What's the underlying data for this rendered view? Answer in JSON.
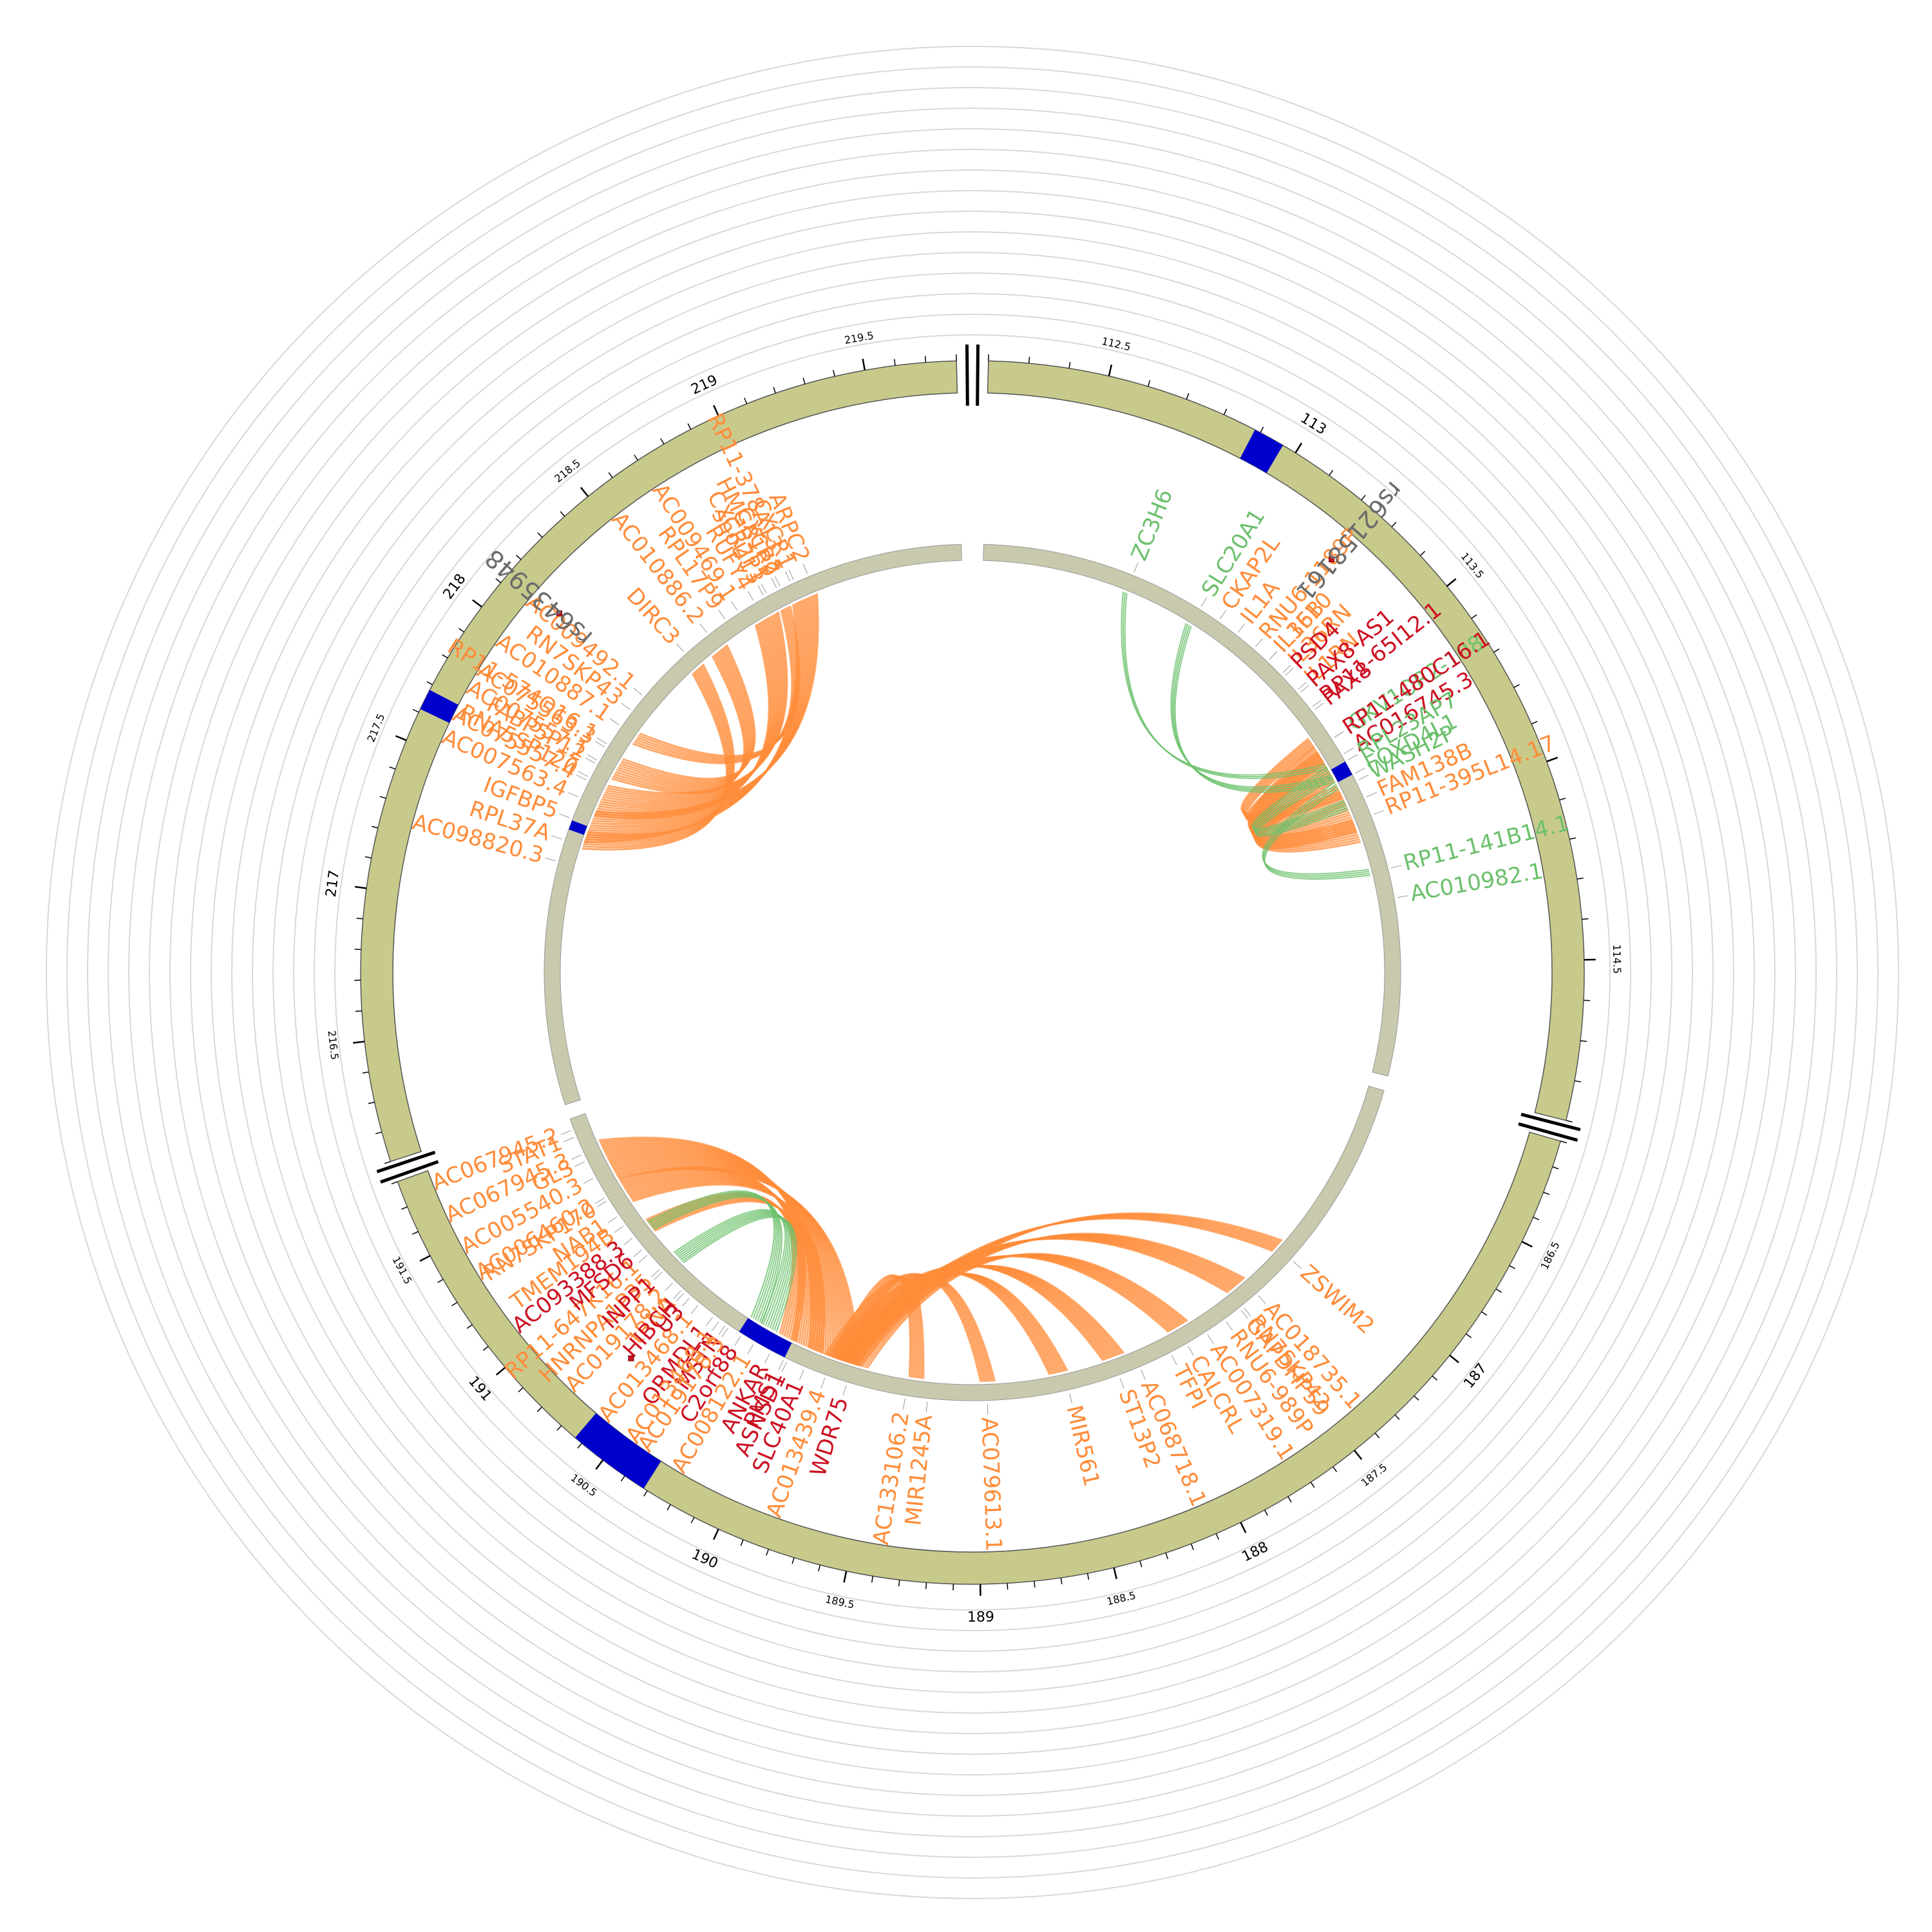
{
  "colors": {
    "ideogram": "#c8ca8c",
    "inner_track": "#c8c9ad",
    "highlight": "#0000cc",
    "orange": "#ff8c3a",
    "green": "#6cc06c",
    "red": "#cc1122",
    "grid": "#d8d8d8",
    "snp_dot": "#cc1122"
  },
  "segments": [
    {
      "id": "chr2a",
      "start": 112.2,
      "end": 114.9,
      "ang0": 1.5,
      "ang1": 104
    },
    {
      "id": "chr2b",
      "start": 186.1,
      "end": 191.8,
      "ang0": 106,
      "ang1": 250
    },
    {
      "id": "chr2c",
      "start": 216.1,
      "end": 219.8,
      "ang0": 252,
      "ang1": 358.5
    }
  ],
  "major_ticks": [
    {
      "label": "113",
      "seg": "chr2a",
      "pos": 113
    },
    {
      "label": "187",
      "seg": "chr2b",
      "pos": 187
    },
    {
      "label": "188",
      "seg": "chr2b",
      "pos": 188
    },
    {
      "label": "189",
      "seg": "chr2b",
      "pos": 189
    },
    {
      "label": "190",
      "seg": "chr2b",
      "pos": 190
    },
    {
      "label": "191",
      "seg": "chr2b",
      "pos": 191
    },
    {
      "label": "217",
      "seg": "chr2c",
      "pos": 217
    },
    {
      "label": "218",
      "seg": "chr2c",
      "pos": 218
    },
    {
      "label": "219",
      "seg": "chr2c",
      "pos": 219
    }
  ],
  "minor_ticks": [
    {
      "label": "112.5",
      "seg": "chr2a",
      "pos": 112.5
    },
    {
      "label": "113.5",
      "seg": "chr2a",
      "pos": 113.5
    },
    {
      "label": "114.5",
      "seg": "chr2a",
      "pos": 114.5
    },
    {
      "label": "186.5",
      "seg": "chr2b",
      "pos": 186.5
    },
    {
      "label": "187.5",
      "seg": "chr2b",
      "pos": 187.5
    },
    {
      "label": "188.5",
      "seg": "chr2b",
      "pos": 188.5
    },
    {
      "label": "189.5",
      "seg": "chr2b",
      "pos": 189.5
    },
    {
      "label": "190.5",
      "seg": "chr2b",
      "pos": 190.5
    },
    {
      "label": "191.5",
      "seg": "chr2b",
      "pos": 191.5
    },
    {
      "label": "216.5",
      "seg": "chr2c",
      "pos": 216.5
    },
    {
      "label": "217.5",
      "seg": "chr2c",
      "pos": 217.5
    },
    {
      "label": "218.5",
      "seg": "chr2c",
      "pos": 218.5
    },
    {
      "label": "219.5",
      "seg": "chr2c",
      "pos": 219.5
    }
  ],
  "outer_highlights": [
    {
      "a0": 27.5,
      "a1": 30.5
    },
    {
      "a0": 212.5,
      "a1": 220.5
    },
    {
      "a0": 295.5,
      "a1": 297.5
    }
  ],
  "inner_highlights": [
    {
      "a0": 60.5,
      "a1": 62.5
    },
    {
      "a0": 206,
      "a1": 213
    },
    {
      "a0": 289.5,
      "a1": 290.8
    }
  ],
  "snps": [
    {
      "label": "rs62158161",
      "ang": 41,
      "r": 850
    },
    {
      "label": "rs6435948",
      "ang": 311,
      "r": 850
    },
    {
      "label": "",
      "ang": 221.5,
      "r": 800
    }
  ],
  "genes_right": [
    {
      "label": "ZC3H6",
      "ang": 22,
      "color": "green"
    },
    {
      "label": "SLC20A1",
      "ang": 32,
      "color": "green"
    },
    {
      "label": "CKAP2L",
      "ang": 35,
      "color": "orange"
    },
    {
      "label": "IL1A",
      "ang": 38,
      "color": "orange"
    },
    {
      "label": "IL36B",
      "ang": 43.5,
      "color": "orange"
    },
    {
      "label": "RNU6-1189P",
      "ang": 41,
      "color": "orange"
    },
    {
      "label": "IL36RN",
      "ang": 46,
      "color": "orange"
    },
    {
      "label": "IL1F10",
      "ang": 43.5,
      "color": "orange"
    },
    {
      "label": "IL1RN",
      "ang": 49,
      "color": "orange"
    },
    {
      "label": "PSD4",
      "ang": 46.5,
      "color": "red"
    },
    {
      "label": "RP11-65I12.1",
      "ang": 52,
      "color": "red"
    },
    {
      "label": "PAX8-AS1",
      "ang": 49.5,
      "color": "red"
    },
    {
      "label": "PAX8",
      "ang": 52.5,
      "color": "red"
    },
    {
      "label": "IGKV1OR2-108",
      "ang": 57,
      "color": "green"
    },
    {
      "label": "AC016745.3",
      "ang": 59.5,
      "color": "red"
    },
    {
      "label": "RP11-480C16.1",
      "ang": 57,
      "color": "red"
    },
    {
      "label": "FOXD4L1",
      "ang": 62.5,
      "color": "green"
    },
    {
      "label": "RPL23AP7",
      "ang": 60.5,
      "color": "green"
    },
    {
      "label": "WASH2P",
      "ang": 63.5,
      "color": "green"
    },
    {
      "label": "FAM138B",
      "ang": 66,
      "color": "orange"
    },
    {
      "label": "RP11-395L14.17",
      "ang": 68.5,
      "color": "orange"
    },
    {
      "label": "RP11-141B14.1",
      "ang": 76,
      "color": "green"
    },
    {
      "label": "AC010982.1",
      "ang": 80,
      "color": "green"
    }
  ],
  "genes_bottom": [
    {
      "label": "ZSWIM2",
      "ang": 132,
      "color": "orange"
    },
    {
      "label": "AC018735.1",
      "ang": 138.5,
      "color": "orange"
    },
    {
      "label": "RNU6-989P",
      "ang": 144,
      "color": "orange"
    },
    {
      "label": "RN7SKP42",
      "ang": 141,
      "color": "orange"
    },
    {
      "label": "AC007319.1",
      "ang": 147,
      "color": "orange"
    },
    {
      "label": "CALCRL",
      "ang": 150,
      "color": "orange"
    },
    {
      "label": "GAPDHP59",
      "ang": 141.5,
      "color": "orange"
    },
    {
      "label": "TFPI",
      "ang": 152.5,
      "color": "orange"
    },
    {
      "label": "AC068718.1",
      "ang": 157,
      "color": "orange"
    },
    {
      "label": "ST13P2",
      "ang": 160,
      "color": "orange"
    },
    {
      "label": "MIR561",
      "ang": 167,
      "color": "orange"
    },
    {
      "label": "AC079613.1",
      "ang": 178,
      "color": "orange"
    },
    {
      "label": "MIR1245A",
      "ang": 186,
      "color": "orange"
    },
    {
      "label": "AC133106.2",
      "ang": 189,
      "color": "orange"
    },
    {
      "label": "WDR75",
      "ang": 197,
      "color": "red"
    },
    {
      "label": "AC013439.4",
      "ang": 200,
      "color": "orange"
    },
    {
      "label": "SLC40A1",
      "ang": 203,
      "color": "red"
    },
    {
      "label": "ASNSD1",
      "ang": 205.5,
      "color": "red"
    },
    {
      "label": "ANKAR",
      "ang": 208,
      "color": "red"
    },
    {
      "label": "PMS1",
      "ang": 206,
      "color": "red"
    },
    {
      "label": "AC008122.1",
      "ang": 210.5,
      "color": "orange"
    },
    {
      "label": "C2orf88",
      "ang": 212.5,
      "color": "red"
    },
    {
      "label": "MSTN",
      "ang": 215,
      "color": "red"
    },
    {
      "label": "AC019178.3",
      "ang": 214.5,
      "color": "orange"
    },
    {
      "label": "ORMDL1",
      "ang": 217,
      "color": "red"
    },
    {
      "label": "AC013468.1",
      "ang": 219.5,
      "color": "orange"
    },
    {
      "label": "U3",
      "ang": 221,
      "color": "red"
    },
    {
      "label": "tRNA",
      "ang": 222.5,
      "color": "orange"
    },
    {
      "label": "AC019178.2",
      "ang": 224,
      "color": "orange"
    },
    {
      "label": "HNRNPA1P35",
      "ang": 226.5,
      "color": "orange"
    },
    {
      "label": "AC013468.1",
      "ang": 216,
      "color": "orange"
    }
  ],
  "genes_left_bottom": [
    {
      "label": "HIBCH",
      "ang": 222,
      "color": "red"
    },
    {
      "label": "INPP1",
      "ang": 226,
      "color": "red"
    },
    {
      "label": "RP11-647K16.1",
      "ang": 229,
      "color": "orange"
    },
    {
      "label": "MFSD6",
      "ang": 230,
      "color": "red"
    },
    {
      "label": "TMEM194B",
      "ang": 234,
      "color": "orange"
    },
    {
      "label": "AC093388.3",
      "ang": 232,
      "color": "red"
    },
    {
      "label": "RN7SKP170",
      "ang": 238,
      "color": "orange"
    },
    {
      "label": "NAB1",
      "ang": 235.5,
      "color": "orange"
    },
    {
      "label": "AC006460.2",
      "ang": 238.5,
      "color": "orange"
    },
    {
      "label": "AC005540.3",
      "ang": 241.5,
      "color": "orange"
    },
    {
      "label": "GLS",
      "ang": 244,
      "color": "orange"
    },
    {
      "label": "AC067945.3",
      "ang": 245,
      "color": "orange"
    },
    {
      "label": "STAT1",
      "ang": 247.5,
      "color": "orange"
    },
    {
      "label": "AC067945.2",
      "ang": 248.5,
      "color": "orange"
    }
  ],
  "genes_left_top": [
    {
      "label": "AC098820.3",
      "ang": 285,
      "color": "orange"
    },
    {
      "label": "RPL37A",
      "ang": 288,
      "color": "orange"
    },
    {
      "label": "IGFBP5",
      "ang": 291,
      "color": "orange"
    },
    {
      "label": "AC007563.4",
      "ang": 294,
      "color": "orange"
    },
    {
      "label": "RNA5SP120",
      "ang": 297,
      "color": "orange"
    },
    {
      "label": "AC007557.1",
      "ang": 299.5,
      "color": "orange"
    },
    {
      "label": "RP11-574O16.1",
      "ang": 302,
      "color": "orange"
    },
    {
      "label": "AC010887.1",
      "ang": 305,
      "color": "orange"
    },
    {
      "label": "RN7SKP43",
      "ang": 307.5,
      "color": "orange"
    },
    {
      "label": "AC009492.1",
      "ang": 310,
      "color": "orange"
    },
    {
      "label": "DIRC3",
      "ang": 318,
      "color": "orange"
    },
    {
      "label": "AC010886.2",
      "ang": 322,
      "color": "orange"
    },
    {
      "label": "RPL17P9",
      "ang": 325,
      "color": "orange"
    },
    {
      "label": "AC009469.1",
      "ang": 327,
      "color": "orange"
    },
    {
      "label": "RUFY4",
      "ang": 329.5,
      "color": "orange"
    },
    {
      "label": "CXCR2P1",
      "ang": 331.5,
      "color": "orange"
    },
    {
      "label": "CXCR2",
      "ang": 333.5,
      "color": "orange"
    },
    {
      "label": "CXCR1",
      "ang": 335.5,
      "color": "orange"
    },
    {
      "label": "ARPC2",
      "ang": 337.5,
      "color": "orange"
    },
    {
      "label": "snoU13",
      "ang": 331,
      "color": "orange"
    },
    {
      "label": "HMGB1P9",
      "ang": 333,
      "color": "orange"
    },
    {
      "label": "RP11-378A13.1",
      "ang": 335,
      "color": "orange"
    },
    {
      "label": "AC075557.4",
      "ang": 296.5,
      "color": "orange"
    },
    {
      "label": "FABP5P12",
      "ang": 299,
      "color": "orange"
    },
    {
      "label": "AC075563.3",
      "ang": 301.5,
      "color": "orange"
    }
  ],
  "links_orange": [
    {
      "from": 67,
      "to": 60,
      "n": 18
    },
    {
      "from": 70,
      "to": 58,
      "n": 10
    },
    {
      "from": 64,
      "to": 56,
      "n": 6
    },
    {
      "from": 200,
      "to": 243,
      "n": 22
    },
    {
      "from": 204,
      "to": 238,
      "n": 14
    },
    {
      "from": 207,
      "to": 232,
      "n": 8
    },
    {
      "from": 200,
      "to": 178,
      "n": 8
    },
    {
      "from": 198,
      "to": 168,
      "n": 10
    },
    {
      "from": 199,
      "to": 160,
      "n": 12
    },
    {
      "from": 197,
      "to": 150,
      "n": 12
    },
    {
      "from": 198,
      "to": 140,
      "n": 12
    },
    {
      "from": 198,
      "to": 132,
      "n": 8
    },
    {
      "from": 199,
      "to": 188,
      "n": 8
    },
    {
      "from": 295,
      "to": 330,
      "n": 14
    },
    {
      "from": 291,
      "to": 336,
      "n": 14
    },
    {
      "from": 300,
      "to": 322,
      "n": 10
    },
    {
      "from": 289,
      "to": 318,
      "n": 8
    },
    {
      "from": 305,
      "to": 333,
      "n": 6
    }
  ],
  "links_green": [
    {
      "from": 60,
      "to": 22,
      "n": 3
    },
    {
      "from": 62,
      "to": 32,
      "n": 4
    },
    {
      "from": 63,
      "to": 76,
      "n": 4
    },
    {
      "from": 61,
      "to": 66,
      "n": 6
    },
    {
      "from": 210,
      "to": 226,
      "n": 8
    },
    {
      "from": 212,
      "to": 232,
      "n": 6
    }
  ]
}
